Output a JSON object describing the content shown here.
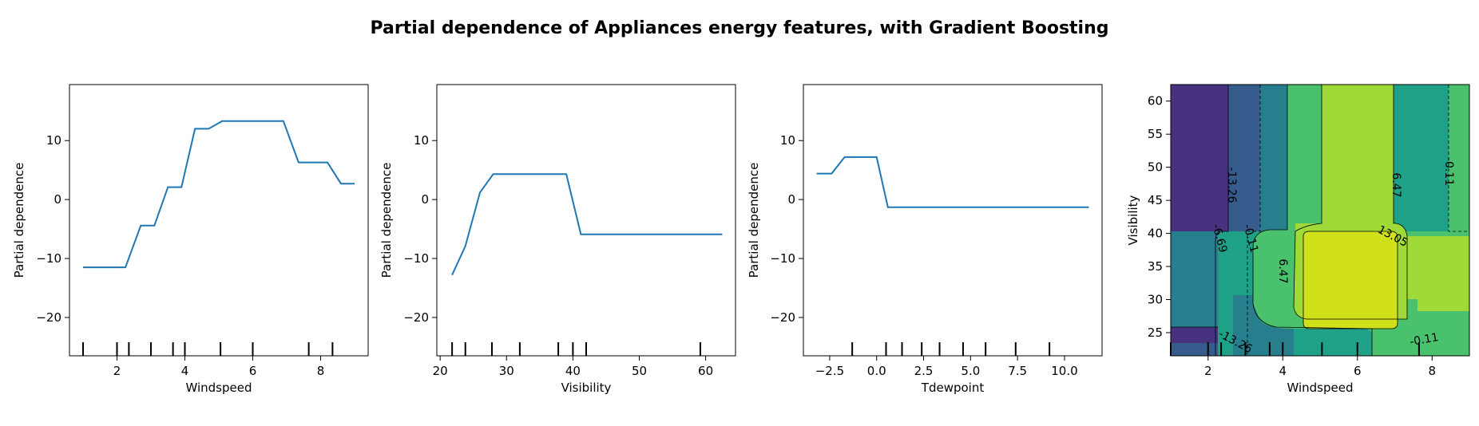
{
  "figure_title": "Partial dependence of Appliances energy features, with Gradient Boosting",
  "chart_data": [
    {
      "type": "line",
      "xlabel": "Windspeed",
      "ylabel": "Partial dependence",
      "xlim": [
        0.6,
        9.4
      ],
      "ylim": [
        -26.5,
        19.5
      ],
      "xticks": [
        2,
        4,
        6,
        8
      ],
      "yticks": [
        -20,
        -10,
        0,
        10
      ],
      "series": [
        {
          "color": "#1f77b4",
          "x": [
            1.0,
            2.25,
            2.7,
            3.1,
            3.5,
            3.9,
            4.3,
            4.7,
            5.1,
            5.5,
            5.9,
            6.3,
            6.9,
            7.35,
            7.7,
            8.2,
            8.6,
            9.0
          ],
          "y": [
            -11.5,
            -11.5,
            -4.4,
            -4.4,
            2.1,
            2.1,
            12.0,
            12.0,
            13.3,
            13.3,
            13.3,
            13.3,
            13.3,
            6.3,
            6.3,
            6.3,
            2.7,
            2.7
          ]
        }
      ],
      "rug": [
        1.0,
        2.0,
        2.35,
        3.0,
        3.65,
        4.0,
        5.05,
        6.0,
        7.65,
        8.35
      ]
    },
    {
      "type": "line",
      "xlabel": "Visibility",
      "ylabel": "Partial dependence",
      "xlim": [
        19.5,
        64.5
      ],
      "ylim": [
        -26.5,
        19.5
      ],
      "xticks": [
        20,
        30,
        40,
        50,
        60
      ],
      "yticks": [
        -20,
        -10,
        0,
        10
      ],
      "series": [
        {
          "color": "#1f77b4",
          "x": [
            21.8,
            23.8,
            26.0,
            28.0,
            30.0,
            32.0,
            35.0,
            39.0,
            41.2,
            45.0,
            55.0,
            62.5
          ],
          "y": [
            -12.8,
            -7.9,
            1.2,
            4.3,
            4.3,
            4.3,
            4.3,
            4.3,
            -5.9,
            -5.9,
            -5.9,
            -5.9
          ]
        }
      ],
      "rug": [
        21.8,
        23.8,
        27.8,
        32.0,
        37.8,
        40.0,
        42.0,
        59.2
      ]
    },
    {
      "type": "line",
      "xlabel": "Tdewpoint",
      "ylabel": "Partial dependence",
      "xlim": [
        -3.9,
        12.0
      ],
      "ylim": [
        -26.5,
        19.5
      ],
      "xticks": [
        -2.5,
        0.0,
        2.5,
        5.0,
        7.5,
        10.0
      ],
      "xticklabels": [
        "−2.5",
        "0.0",
        "2.5",
        "5.0",
        "7.5",
        "10.0"
      ],
      "yticks": [
        -20,
        -10,
        0,
        10
      ],
      "series": [
        {
          "color": "#1f77b4",
          "x": [
            -3.2,
            -2.4,
            -1.7,
            -1.3,
            0.0,
            0.6,
            2.0,
            5.0,
            8.0,
            11.3
          ],
          "y": [
            4.4,
            4.4,
            7.2,
            7.2,
            7.2,
            -1.3,
            -1.3,
            -1.3,
            -1.3,
            -1.3
          ]
        }
      ],
      "rug": [
        -1.3,
        0.5,
        1.35,
        2.4,
        3.35,
        4.6,
        5.8,
        7.4,
        9.2
      ]
    },
    {
      "type": "heatmap",
      "subtype": "contour",
      "xlabel": "Windspeed",
      "ylabel": "Visibility",
      "xlim": [
        1.0,
        9.0
      ],
      "ylim": [
        21.5,
        62.5
      ],
      "xticks": [
        2,
        4,
        6,
        8
      ],
      "yticks": [
        25,
        30,
        35,
        40,
        45,
        50,
        55,
        60
      ],
      "contour_labels": [
        "-13.26",
        "-6.69",
        "-0.11",
        "6.47",
        "13.05"
      ],
      "colormap": [
        "#46327e",
        "#365c8d",
        "#277f8e",
        "#1fa187",
        "#4ac16d",
        "#a0da39",
        "#d0e11c"
      ],
      "rug_x": [
        1.0,
        2.0,
        2.35,
        3.0,
        3.65,
        4.0,
        5.05,
        6.0,
        7.65
      ]
    }
  ]
}
